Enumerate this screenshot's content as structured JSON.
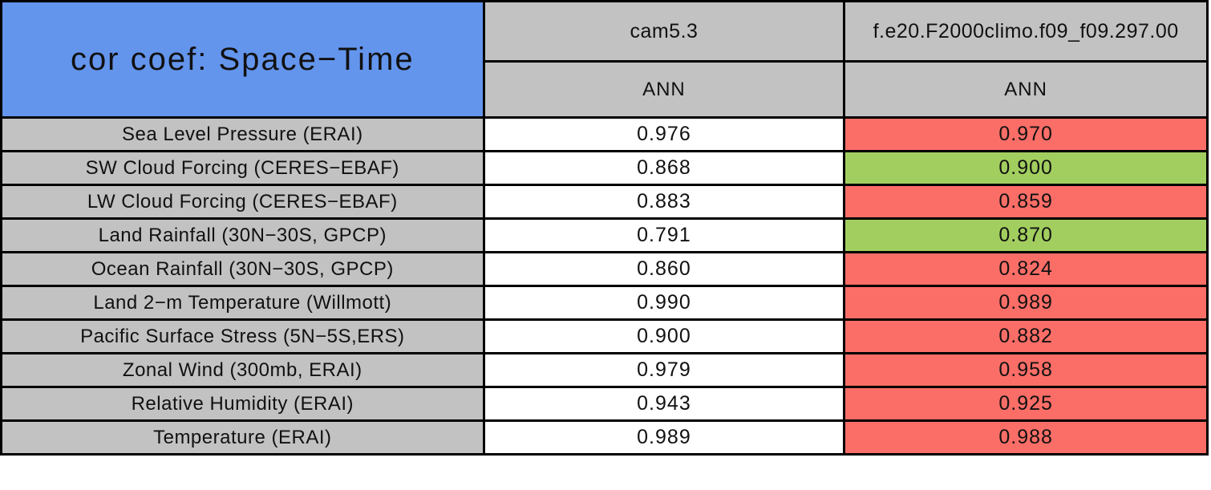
{
  "colors": {
    "title_blue": "#6495ED",
    "header_gray": "#C2C2C2",
    "worse_red": "#FB6E67",
    "better_green": "#A2CE5F",
    "base_white": "#FFFFFF",
    "border_black": "#000000"
  },
  "chart_data": {
    "type": "table",
    "title": "cor coef: Space−Time",
    "columns": [
      {
        "model": "cam5.3",
        "season": "ANN"
      },
      {
        "model": "f.e20.F2000climo.f09_f09.297.00",
        "season": "ANN"
      }
    ],
    "rows": [
      {
        "variable": "Sea Level Pressure (ERAI)",
        "values": [
          "0.976",
          "0.970"
        ],
        "highlight": "red"
      },
      {
        "variable": "SW Cloud Forcing (CERES−EBAF)",
        "values": [
          "0.868",
          "0.900"
        ],
        "highlight": "green"
      },
      {
        "variable": "LW Cloud Forcing (CERES−EBAF)",
        "values": [
          "0.883",
          "0.859"
        ],
        "highlight": "red"
      },
      {
        "variable": "Land Rainfall (30N−30S, GPCP)",
        "values": [
          "0.791",
          "0.870"
        ],
        "highlight": "green"
      },
      {
        "variable": "Ocean Rainfall (30N−30S, GPCP)",
        "values": [
          "0.860",
          "0.824"
        ],
        "highlight": "red"
      },
      {
        "variable": "Land 2−m Temperature (Willmott)",
        "values": [
          "0.990",
          "0.989"
        ],
        "highlight": "red"
      },
      {
        "variable": "Pacific Surface Stress (5N−5S,ERS)",
        "values": [
          "0.900",
          "0.882"
        ],
        "highlight": "red"
      },
      {
        "variable": "Zonal Wind (300mb, ERAI)",
        "values": [
          "0.979",
          "0.958"
        ],
        "highlight": "red"
      },
      {
        "variable": "Relative Humidity (ERAI)",
        "values": [
          "0.943",
          "0.925"
        ],
        "highlight": "red"
      },
      {
        "variable": "Temperature (ERAI)",
        "values": [
          "0.989",
          "0.988"
        ],
        "highlight": "red"
      }
    ]
  }
}
